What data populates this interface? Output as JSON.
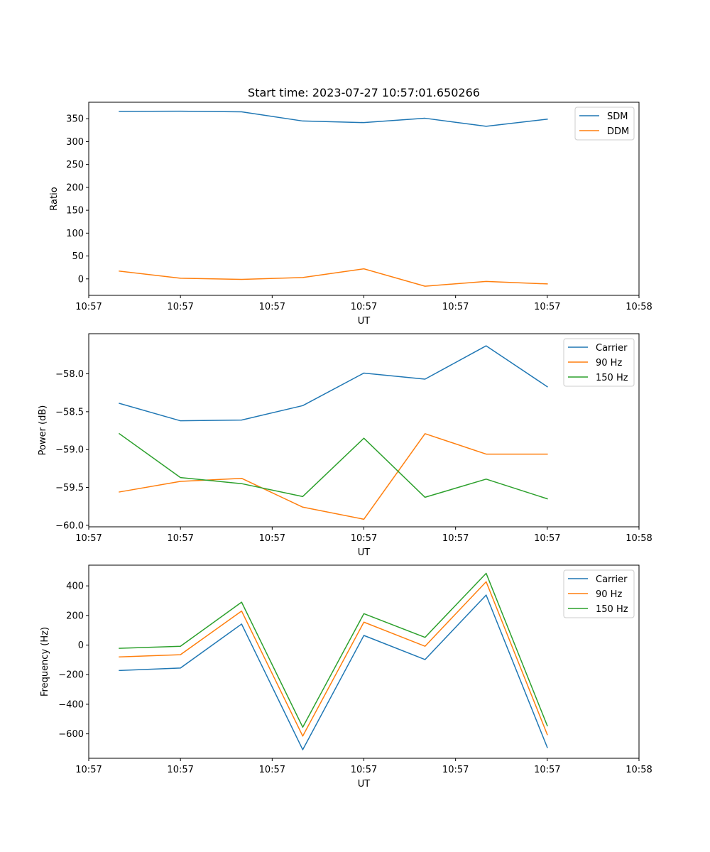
{
  "chart_data": [
    {
      "type": "line",
      "title": "Start time: 2023-07-27 10:57:01.650266",
      "xlabel": "UT",
      "ylabel": "Ratio",
      "x": [
        1,
        2,
        3,
        4,
        5,
        6,
        7,
        8
      ],
      "xlim": [
        0.5,
        9.5
      ],
      "x_ticks": [
        0.5,
        2,
        3.5,
        5,
        6.5,
        8,
        9.5
      ],
      "x_tick_labels": [
        "10:57",
        "10:57",
        "10:57",
        "10:57",
        "10:57",
        "10:57",
        "10:58"
      ],
      "ylim": [
        -36,
        386
      ],
      "y_ticks": [
        0,
        50,
        100,
        150,
        200,
        250,
        300,
        350
      ],
      "y_tick_labels": [
        "0",
        "50",
        "100",
        "150",
        "200",
        "250",
        "300",
        "350"
      ],
      "legend": "upper right",
      "series": [
        {
          "name": "SDM",
          "color": "#1f77b4",
          "values": [
            366,
            366.5,
            365,
            345,
            341.5,
            351,
            333.5,
            349
          ]
        },
        {
          "name": "DDM",
          "color": "#ff7f0e",
          "values": [
            17,
            1.5,
            -1,
            3,
            22,
            -16,
            -5.5,
            -11
          ]
        }
      ]
    },
    {
      "type": "line",
      "title": "",
      "xlabel": "UT",
      "ylabel": "Power (dB)",
      "x": [
        1,
        2,
        3,
        4,
        5,
        6,
        7,
        8
      ],
      "xlim": [
        0.5,
        9.5
      ],
      "x_ticks": [
        0.5,
        2,
        3.5,
        5,
        6.5,
        8,
        9.5
      ],
      "x_tick_labels": [
        "10:57",
        "10:57",
        "10:57",
        "10:57",
        "10:57",
        "10:57",
        "10:58"
      ],
      "ylim": [
        -60.02,
        -57.47
      ],
      "y_ticks": [
        -60.0,
        -59.5,
        -59.0,
        -58.5,
        -58.0
      ],
      "y_tick_labels": [
        "−60.0",
        "−59.5",
        "−59.0",
        "−58.5",
        "−58.0"
      ],
      "legend": "upper right",
      "series": [
        {
          "name": "Carrier",
          "color": "#1f77b4",
          "values": [
            -58.39,
            -58.62,
            -58.61,
            -58.42,
            -57.99,
            -58.07,
            -57.63,
            -58.17
          ]
        },
        {
          "name": "90 Hz",
          "color": "#ff7f0e",
          "values": [
            -59.56,
            -59.42,
            -59.38,
            -59.76,
            -59.92,
            -58.79,
            -59.06,
            -59.06
          ]
        },
        {
          "name": "150 Hz",
          "color": "#2ca02c",
          "values": [
            -58.79,
            -59.37,
            -59.45,
            -59.62,
            -58.85,
            -59.63,
            -59.39,
            -59.65
          ]
        }
      ]
    },
    {
      "type": "line",
      "title": "",
      "xlabel": "UT",
      "ylabel": "Frequency (Hz)",
      "x": [
        1,
        2,
        3,
        4,
        5,
        6,
        7,
        8
      ],
      "xlim": [
        0.5,
        9.5
      ],
      "x_ticks": [
        0.5,
        2,
        3.5,
        5,
        6.5,
        8,
        9.5
      ],
      "x_tick_labels": [
        "10:57",
        "10:57",
        "10:57",
        "10:57",
        "10:57",
        "10:57",
        "10:58"
      ],
      "ylim": [
        -765,
        540
      ],
      "y_ticks": [
        -600,
        -400,
        -200,
        0,
        200,
        400
      ],
      "y_tick_labels": [
        "−600",
        "−400",
        "−200",
        "0",
        "200",
        "400"
      ],
      "legend": "upper right",
      "series": [
        {
          "name": "Carrier",
          "color": "#1f77b4",
          "values": [
            -172,
            -155,
            142,
            -707,
            65,
            -98,
            338,
            -692
          ]
        },
        {
          "name": "90 Hz",
          "color": "#ff7f0e",
          "values": [
            -80,
            -65,
            230,
            -615,
            155,
            -8,
            428,
            -605
          ]
        },
        {
          "name": "150 Hz",
          "color": "#2ca02c",
          "values": [
            -22,
            -8,
            290,
            -555,
            212,
            52,
            485,
            -545
          ]
        }
      ]
    }
  ]
}
